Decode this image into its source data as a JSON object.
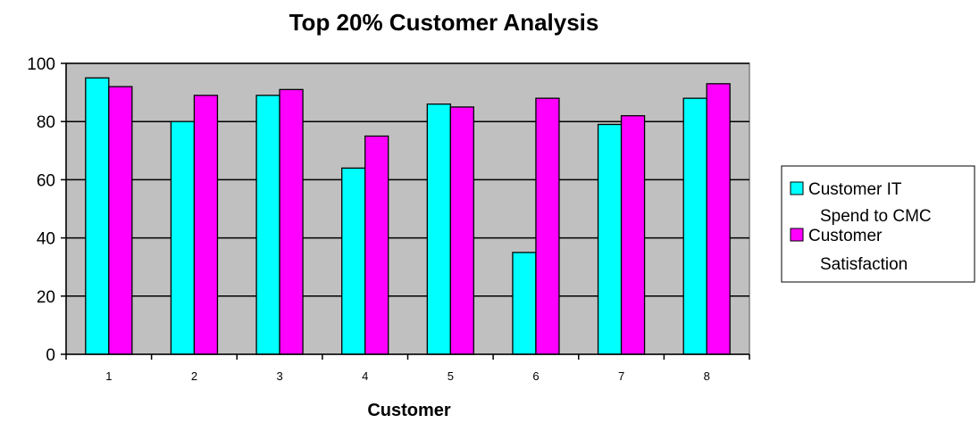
{
  "chart_data": {
    "type": "bar",
    "title": "Top 20% Customer Analysis",
    "xlabel": "Customer",
    "ylabel": "",
    "categories": [
      "1",
      "2",
      "3",
      "4",
      "5",
      "6",
      "7",
      "8"
    ],
    "series": [
      {
        "name": "Customer IT Spend to CMC",
        "legend_lines": [
          "Customer IT",
          "Spend to CMC"
        ],
        "color": "#00FFFF",
        "values": [
          95,
          80,
          89,
          64,
          86,
          35,
          79,
          88
        ]
      },
      {
        "name": "Customer Satisfaction",
        "legend_lines": [
          "Customer",
          "Satisfaction"
        ],
        "color": "#FF00FF",
        "values": [
          92,
          89,
          91,
          75,
          85,
          88,
          82,
          93
        ]
      }
    ],
    "ylim": [
      0,
      100
    ],
    "yticks": [
      0,
      20,
      40,
      60,
      80,
      100
    ],
    "grid": true,
    "plot_background": "#C0C0C0",
    "legend_position": "right"
  }
}
